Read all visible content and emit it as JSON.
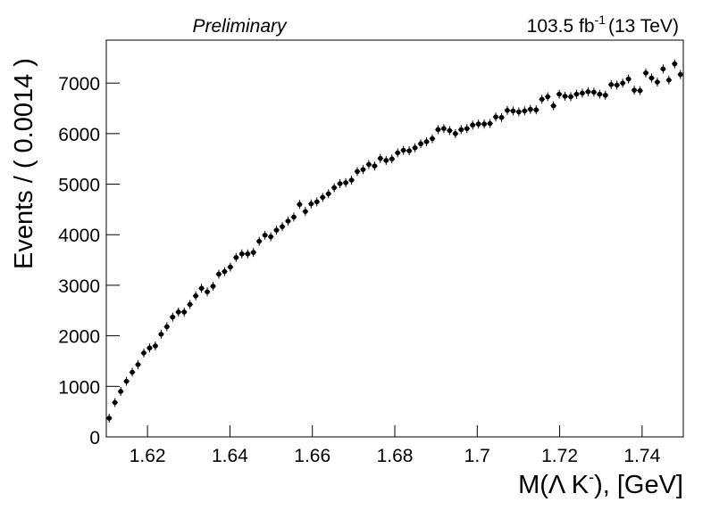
{
  "chart_data": {
    "type": "errorbar",
    "header_left": "Preliminary",
    "lumi": "103.5 fb",
    "lumi_exponent": "-1",
    "energy": "(13 TeV)",
    "x_label": "M(Λ K",
    "x_label_sup": "-",
    "x_label_end": "), [GeV]",
    "y_label": "Events / ( 0.0014 )",
    "bin_width": 0.0014,
    "x": [
      1.6107,
      1.6121,
      1.6135,
      1.6149,
      1.6163,
      1.6177,
      1.6191,
      1.6205,
      1.6219,
      1.6233,
      1.6247,
      1.6261,
      1.6275,
      1.6289,
      1.6303,
      1.6317,
      1.6331,
      1.6345,
      1.6359,
      1.6373,
      1.6387,
      1.6401,
      1.6415,
      1.6429,
      1.6443,
      1.6457,
      1.6471,
      1.6485,
      1.6499,
      1.6513,
      1.6527,
      1.6541,
      1.6555,
      1.6569,
      1.6583,
      1.6597,
      1.6611,
      1.6625,
      1.6639,
      1.6653,
      1.6667,
      1.6681,
      1.6695,
      1.6709,
      1.6723,
      1.6737,
      1.6751,
      1.6765,
      1.6779,
      1.6793,
      1.6807,
      1.6821,
      1.6835,
      1.6849,
      1.6863,
      1.6877,
      1.6891,
      1.6905,
      1.6919,
      1.6933,
      1.6947,
      1.6961,
      1.6975,
      1.6989,
      1.7003,
      1.7017,
      1.7031,
      1.7045,
      1.7059,
      1.7073,
      1.7087,
      1.7101,
      1.7115,
      1.7129,
      1.7143,
      1.7157,
      1.7171,
      1.7185,
      1.7199,
      1.7213,
      1.7227,
      1.7241,
      1.7255,
      1.7269,
      1.7283,
      1.7297,
      1.7311,
      1.7325,
      1.7339,
      1.7353,
      1.7367,
      1.7381,
      1.7395,
      1.7409,
      1.7423,
      1.7437,
      1.7451,
      1.7465,
      1.7479,
      1.7493
    ],
    "values": [
      370,
      680,
      900,
      1100,
      1280,
      1430,
      1660,
      1760,
      1800,
      2030,
      2180,
      2370,
      2470,
      2470,
      2620,
      2790,
      2940,
      2870,
      2980,
      3220,
      3270,
      3360,
      3550,
      3620,
      3620,
      3650,
      3870,
      3990,
      3960,
      4090,
      4160,
      4270,
      4350,
      4600,
      4460,
      4610,
      4650,
      4740,
      4810,
      4930,
      5010,
      5030,
      5080,
      5250,
      5290,
      5390,
      5360,
      5510,
      5470,
      5500,
      5620,
      5670,
      5660,
      5720,
      5800,
      5840,
      5900,
      6080,
      6100,
      6060,
      6000,
      6080,
      6100,
      6170,
      6190,
      6190,
      6200,
      6330,
      6320,
      6460,
      6450,
      6430,
      6450,
      6480,
      6470,
      6680,
      6730,
      6550,
      6780,
      6740,
      6730,
      6780,
      6800,
      6830,
      6820,
      6780,
      6760,
      6970,
      6960,
      7000,
      7080,
      6860,
      6850,
      7200,
      7100,
      7020,
      7280,
      7060,
      7380,
      7170
    ],
    "color": "#000000",
    "xlim": [
      1.61,
      1.75
    ],
    "xticks": [
      1.62,
      1.64,
      1.66,
      1.68,
      1.7,
      1.72,
      1.74
    ],
    "ylim": [
      0,
      7850
    ],
    "yticks": [
      0,
      1000,
      2000,
      3000,
      4000,
      5000,
      6000,
      7000
    ]
  }
}
